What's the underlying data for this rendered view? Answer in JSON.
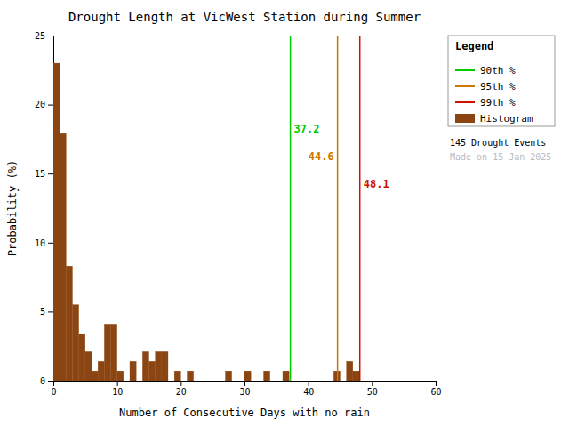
{
  "chart_data": {
    "type": "histogram",
    "title": "Drought Length at VicWest Station during Summer",
    "x_label": "Number of Consecutive Days with no rain",
    "y_label": "Probability (%)",
    "bins": [
      0,
      1,
      2,
      3,
      4,
      5,
      6,
      7,
      8,
      9,
      10,
      11,
      12,
      13,
      14,
      15,
      16,
      17,
      18,
      19,
      20,
      21,
      22,
      23,
      24,
      25,
      26,
      27,
      28,
      29,
      30,
      31,
      32,
      33,
      34,
      35,
      36,
      37,
      38,
      39,
      40,
      41,
      42,
      43,
      44,
      45,
      46,
      47,
      48,
      49,
      50,
      51,
      52,
      53,
      54,
      55,
      56,
      57,
      58,
      59,
      60
    ],
    "series": [
      {
        "name": "Histogram",
        "color": "#8B4513",
        "values": [
          23.0,
          17.9,
          8.3,
          5.5,
          3.4,
          2.1,
          0.7,
          1.4,
          4.1,
          4.1,
          0.7,
          0.0,
          1.4,
          0.0,
          2.1,
          1.4,
          2.1,
          2.1,
          0.0,
          0.7,
          0.0,
          0.7,
          0.0,
          0.0,
          0.0,
          0.0,
          0.0,
          0.7,
          0.0,
          0.0,
          0.7,
          0.0,
          0.0,
          0.7,
          0.0,
          0.0,
          0.7,
          0.0,
          0.0,
          0.0,
          0.0,
          0.0,
          0.0,
          0.0,
          0.7,
          0.0,
          1.4,
          0.7,
          0.0,
          0.0,
          0.0,
          0.0,
          0.0,
          0.0,
          0.0,
          0.0,
          0.0,
          0.0,
          0.0,
          0.0
        ]
      }
    ],
    "lines": [
      {
        "name": "90th %",
        "x": 37.2,
        "color": "#00CC00",
        "label": "37.2"
      },
      {
        "name": "95th %",
        "x": 44.6,
        "color": "#CC7700",
        "label": "44.6"
      },
      {
        "name": "99th %",
        "x": 48.1,
        "color": "#CC1100",
        "label": "48.1"
      }
    ],
    "xlim": [
      0,
      60
    ],
    "ylim": [
      0,
      25
    ],
    "xticks": [
      0,
      10,
      20,
      30,
      40,
      50,
      60
    ],
    "yticks": [
      0,
      5,
      10,
      15,
      20,
      25
    ],
    "grid": false,
    "legend": "upper right",
    "legend_title": "Legend",
    "annotations": [
      {
        "text": "145 Drought Events",
        "color": "#000000"
      },
      {
        "text": "Made on 15 Jan 2025",
        "color": "#BBBBBB"
      }
    ]
  }
}
